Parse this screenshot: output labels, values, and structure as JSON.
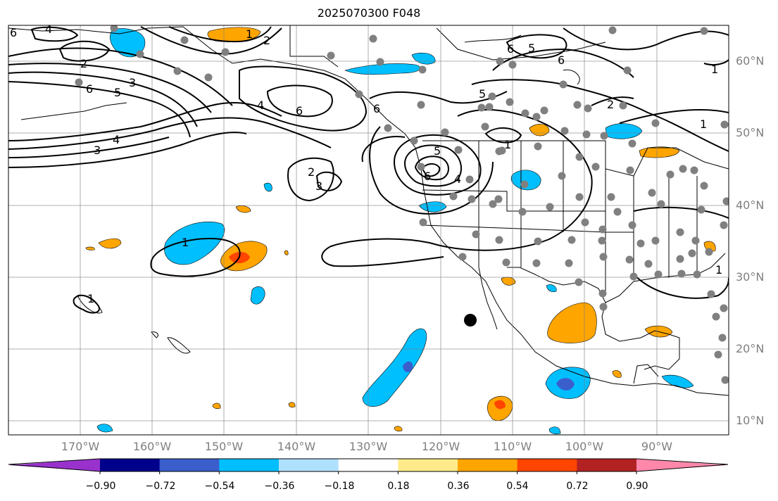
{
  "title": "2025070300 F048",
  "lon_labels": [
    "170°W",
    "160°W",
    "150°W",
    "140°W",
    "130°W",
    "120°W",
    "110°W",
    "100°W",
    "90°W"
  ],
  "lat_labels": [
    "60°N",
    "50°N",
    "40°N",
    "30°N",
    "20°N",
    "10°N"
  ],
  "contour_labels": [
    "6",
    "4",
    "2",
    "1",
    "3",
    "2",
    "5",
    "6",
    "4",
    "6",
    "3",
    "4",
    "2",
    "3",
    "1",
    "5",
    "6",
    "5",
    "6",
    "4",
    "1",
    "6",
    "5",
    "6",
    "1",
    "2",
    "1",
    "1",
    "1"
  ],
  "colorbar": {
    "tick_labels": [
      "−0.90",
      "−0.72",
      "−0.54",
      "−0.36",
      "−0.18",
      "0.18",
      "0.36",
      "0.54",
      "0.72",
      "0.90"
    ],
    "colors": [
      "#9932cc",
      "#00008b",
      "#3a5fcd",
      "#00bfff",
      "#afe1ff",
      "#ffffff",
      "#ffeb8a",
      "#ffa500",
      "#ff4500",
      "#b22222",
      "#ff88aa"
    ]
  },
  "fill_colors": {
    "neg_light": "#00bfff",
    "neg_mid": "#3a5fcd",
    "pos_light": "#ffa500",
    "pos_mid": "#ff4500"
  }
}
